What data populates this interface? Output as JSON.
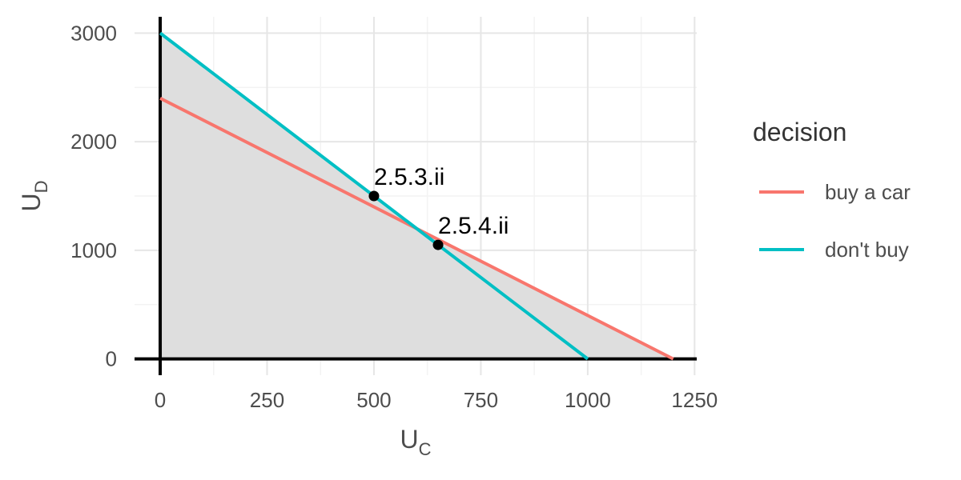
{
  "chart_data": {
    "type": "line",
    "xlabel": {
      "main": "U",
      "sub": "C"
    },
    "ylabel": {
      "main": "U",
      "sub": "D"
    },
    "xlim": [
      -60,
      1255
    ],
    "ylim": [
      -150,
      3150
    ],
    "x_ticks": [
      {
        "value": 0,
        "label": "0"
      },
      {
        "value": 250,
        "label": "250"
      },
      {
        "value": 500,
        "label": "500"
      },
      {
        "value": 750,
        "label": "750"
      },
      {
        "value": 1000,
        "label": "1000"
      },
      {
        "value": 1250,
        "label": "1250"
      }
    ],
    "y_ticks": [
      {
        "value": 0,
        "label": "0"
      },
      {
        "value": 1000,
        "label": "1000"
      },
      {
        "value": 2000,
        "label": "2000"
      },
      {
        "value": 3000,
        "label": "3000"
      }
    ],
    "grid": true,
    "shaded_region": {
      "polygon": [
        [
          0,
          0
        ],
        [
          0,
          3000
        ],
        [
          600,
          1200
        ],
        [
          1200,
          0
        ]
      ],
      "color": "#dedede"
    },
    "series": [
      {
        "name": "buy a car",
        "color": "#f8766d",
        "x": [
          0,
          1200
        ],
        "y": [
          2400,
          0
        ]
      },
      {
        "name": "don't buy",
        "color": "#00bfc4",
        "x": [
          0,
          1000
        ],
        "y": [
          3000,
          0
        ]
      }
    ],
    "points": [
      {
        "label": "2.5.3.ii",
        "x": 500,
        "y": 1500
      },
      {
        "label": "2.5.4.ii",
        "x": 650,
        "y": 1050
      }
    ],
    "legend": {
      "title": "decision",
      "position": "right",
      "entries": [
        "buy a car",
        "don't buy"
      ]
    }
  }
}
